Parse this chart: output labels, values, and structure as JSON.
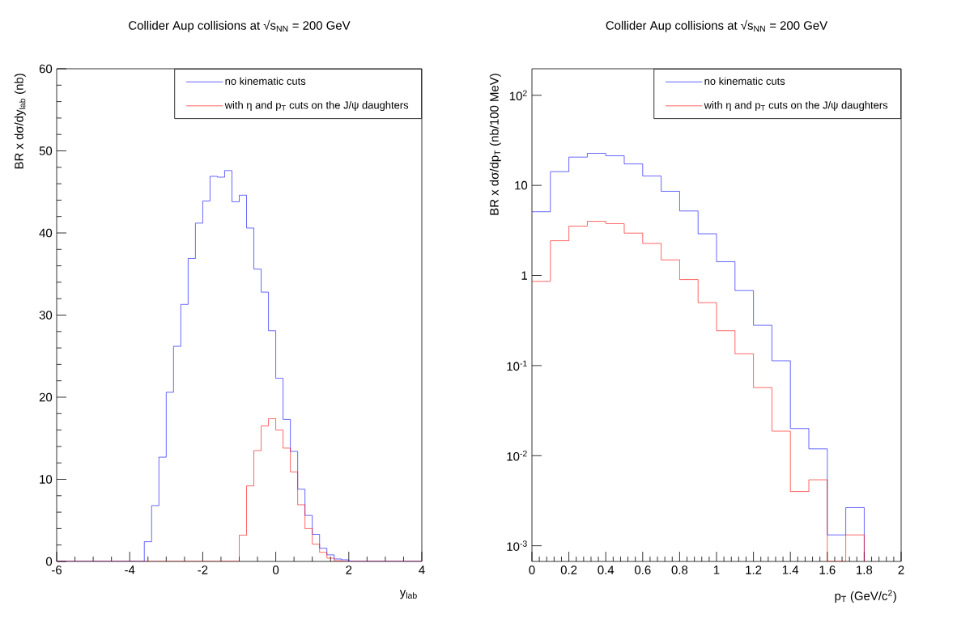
{
  "chart_data": [
    {
      "type": "histogram",
      "title": "Collider Aup collisions at √s$_{NN}$ = 200 GeV",
      "xlabel": "y$_{lab}$",
      "ylabel": "BR x dσ/dy$_{lab}$  (nb)",
      "bins": [
        -6,
        -5.8,
        -5.6,
        -5.4,
        -5.2,
        -5,
        -4.8,
        -4.6,
        -4.4,
        -4.2,
        -4,
        -3.8,
        -3.6,
        -3.4,
        -3.2,
        -3,
        -2.8,
        -2.6,
        -2.4,
        -2.2,
        -2,
        -1.8,
        -1.6,
        -1.4,
        -1.2,
        -1,
        -0.8,
        -0.6,
        -0.4,
        -0.2,
        0,
        0.2,
        0.4,
        0.6,
        0.8,
        1,
        1.2,
        1.4,
        1.6,
        1.8,
        2,
        2.2,
        2.4,
        2.6,
        2.8,
        3,
        3.2,
        3.4,
        3.6,
        3.8,
        4
      ],
      "series": [
        {
          "name": "no kinematic cuts",
          "color": "#0000ff",
          "values": [
            0,
            0,
            0,
            0,
            0,
            0,
            0,
            0,
            0,
            0,
            0,
            0,
            2.4,
            6.8,
            12.7,
            20.6,
            26.2,
            31.3,
            36.9,
            41.2,
            43.9,
            46.9,
            46.8,
            47.6,
            43.8,
            44.6,
            40.6,
            35.6,
            32.8,
            28.1,
            22.3,
            17.3,
            13.4,
            8.8,
            5.6,
            3.3,
            1.6,
            0.8,
            0.3,
            0.2,
            0,
            0,
            0,
            0,
            0,
            0,
            0,
            0,
            0,
            0
          ]
        },
        {
          "name": "with η and p$_{T}$ cuts on the J/ψ daughters",
          "color": "#ff0000",
          "values": [
            0,
            0,
            0,
            0,
            0,
            0,
            0,
            0,
            0,
            0,
            0,
            0,
            0,
            0,
            0,
            0,
            0,
            0,
            0,
            0,
            0,
            0,
            0,
            0,
            0,
            3.2,
            9.2,
            13.5,
            16.5,
            17.4,
            16.0,
            13.8,
            10.9,
            6.9,
            4.0,
            2.1,
            1.1,
            0.4,
            0.1,
            0,
            0,
            0,
            0,
            0,
            0,
            0,
            0,
            0,
            0,
            0
          ]
        }
      ],
      "xlim": [
        -6,
        4
      ],
      "ylim": [
        0,
        60
      ],
      "xticks": [
        -6,
        -4,
        -2,
        0,
        2,
        4
      ],
      "yticks": [
        0,
        10,
        20,
        30,
        40,
        50,
        60
      ],
      "legend": "top right"
    },
    {
      "type": "histogram",
      "title": "Collider Aup collisions at √s$_{NN}$ = 200 GeV",
      "xlabel": "p$_{T}$ (GeV/c$^{2}$)",
      "ylabel": "BR x dσ/dp$_{T}$  (nb/100 MeV)",
      "bins": [
        0,
        0.1,
        0.2,
        0.3,
        0.4,
        0.5,
        0.6,
        0.7,
        0.8,
        0.9,
        1,
        1.1,
        1.2,
        1.3,
        1.4,
        1.5,
        1.6,
        1.7,
        1.8
      ],
      "series": [
        {
          "name": "no kinematic cuts",
          "color": "#0000ff",
          "values": [
            5.1,
            14.2,
            20.6,
            22.7,
            21.3,
            17.3,
            12.7,
            8.6,
            5.2,
            2.9,
            1.42,
            0.68,
            0.28,
            0.113,
            0.02,
            0.0119,
            0.00132,
            0.00265
          ]
        },
        {
          "name": "with η and p$_{T}$ cuts on the J/ψ daughters",
          "color": "#ff0000",
          "values": [
            0.86,
            2.43,
            3.53,
            3.99,
            3.76,
            2.95,
            2.27,
            1.49,
            0.9,
            0.5,
            0.244,
            0.135,
            0.057,
            0.0187,
            0.004,
            0.0054,
            null,
            0.00132
          ]
        }
      ],
      "xlim": [
        0,
        2
      ],
      "ylim": [
        0.00067,
        197
      ],
      "log": "y",
      "xticks": [
        0,
        0.2,
        0.4,
        0.6,
        0.8,
        1,
        1.2,
        1.4,
        1.6,
        1.8,
        2
      ],
      "yticks": [
        {
          "value": 0.001,
          "label": "10$^{-3}$"
        },
        {
          "value": 0.01,
          "label": "10$^{-2}$"
        },
        {
          "value": 0.1,
          "label": "10$^{-1}$"
        },
        1,
        10,
        {
          "value": 100,
          "label": "10$^{2}$"
        }
      ],
      "legend": "top right"
    }
  ]
}
